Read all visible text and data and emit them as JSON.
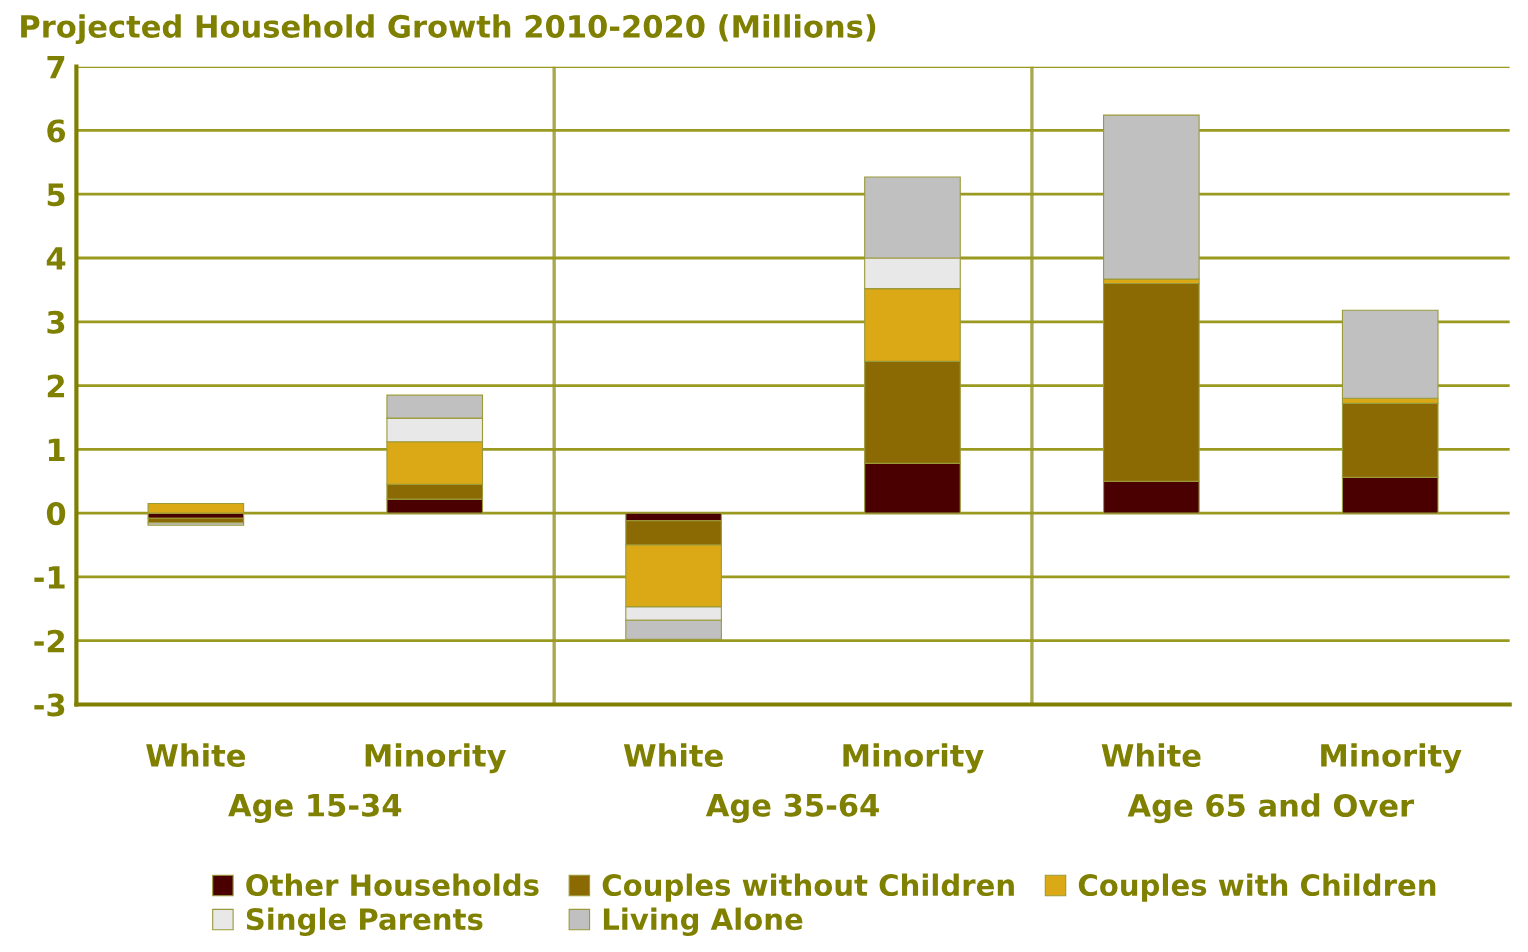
{
  "chart_data": {
    "type": "bar",
    "stacked": true,
    "title": "Projected Household Growth 2010-2020 (Millions)",
    "categories": [
      "White",
      "Minority",
      "White",
      "Minority",
      "White",
      "Minority"
    ],
    "annotations": [
      "Age 15-34",
      "Age 35-64",
      "Age 65 and Over"
    ],
    "series": [
      {
        "name": "Other Households",
        "color": "#4a0000",
        "values": [
          -0.08,
          0.22,
          -0.12,
          0.78,
          0.5,
          0.56
        ]
      },
      {
        "name": "Couples without Children",
        "color": "#8b6a04",
        "values": [
          -0.07,
          0.23,
          -0.38,
          1.6,
          3.1,
          1.16
        ]
      },
      {
        "name": "Couples with Children",
        "color": "#dba915",
        "values": [
          0.15,
          0.67,
          -0.97,
          1.14,
          0.07,
          0.08
        ]
      },
      {
        "name": "Single Parents",
        "color": "#e8e8e8",
        "values": [
          null,
          0.37,
          -0.21,
          0.48,
          0,
          0
        ]
      },
      {
        "name": "Living Alone",
        "color": "#c0c0c0",
        "values": [
          -0.04,
          0.36,
          -0.3,
          1.27,
          2.57,
          1.38
        ]
      }
    ],
    "ylim": [
      -3,
      7
    ],
    "yticks": [
      -3,
      -2,
      -1,
      0,
      1,
      2,
      3,
      4,
      5,
      6,
      7
    ],
    "grid": "y",
    "legend": "bottom"
  }
}
